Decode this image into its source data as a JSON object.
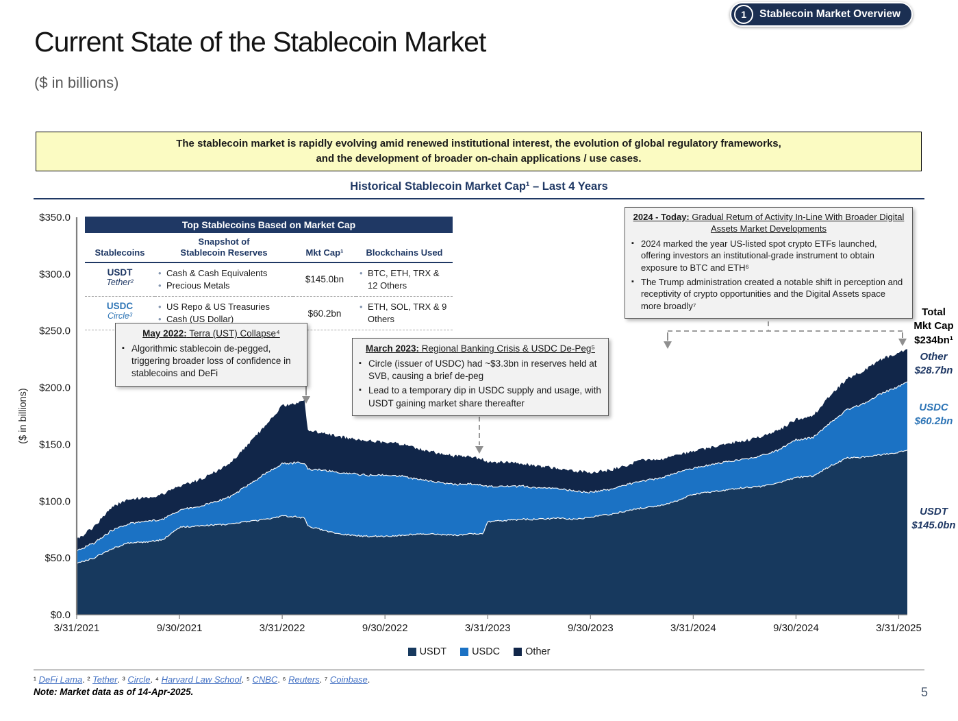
{
  "badge": {
    "number": "1",
    "label": "Stablecoin Market Overview"
  },
  "title": "Current State of the Stablecoin Market",
  "subtitle": "($ in billions)",
  "banner": {
    "line1": "The stablecoin market is rapidly evolving amid renewed institutional interest, the evolution of global regulatory frameworks,",
    "line2": "and the development of broader on-chain applications / use cases."
  },
  "chart_title": "Historical Stablecoin Market Cap¹ – Last 4 Years",
  "table": {
    "header": "Top Stablecoins Based on Market Cap",
    "columns": {
      "stablecoins": "Stablecoins",
      "reserves_l1": "Snapshot of",
      "reserves_l2": "Stablecoin Reserves",
      "mktcap": "Mkt Cap¹",
      "blockchains": "Blockchains Used"
    },
    "rows": [
      {
        "coin": "USDT",
        "issuer": "Tether²",
        "coin_color": "#1f3864",
        "reserves": [
          "Cash & Cash Equivalents",
          "Precious Metals"
        ],
        "mkt_cap": "$145.0bn",
        "blockchains": "BTC, ETH, TRX & 12 Others"
      },
      {
        "coin": "USDC",
        "issuer": "Circle³",
        "coin_color": "#2e75b6",
        "reserves": [
          "US Repo & US Treasuries",
          "Cash (US Dollar)"
        ],
        "mkt_cap": "$60.2bn",
        "blockchains": "ETH, SOL, TRX & 9 Others"
      }
    ]
  },
  "annotations": {
    "may2022": {
      "title_bold": "May 2022:",
      "title_rest": " Terra (UST) Collapse⁴",
      "bullets": [
        "Algorithmic stablecoin de-pegged, triggering broader loss of confidence in stablecoins and DeFi"
      ]
    },
    "mar2023": {
      "title_bold": "March 2023:",
      "title_rest": " Regional Banking Crisis & USDC De-Peg⁵",
      "bullets": [
        "Circle (issuer of USDC) had ~$3.3bn in reserves held at SVB, causing a brief de-peg",
        "Lead to a temporary dip in USDC supply and usage, with USDT gaining market share thereafter"
      ]
    },
    "y2024": {
      "title_bold": "2024 - Today:",
      "title_rest": " Gradual Return of Activity In-Line With Broader Digital Assets Market Developments",
      "bullets": [
        "2024 marked the year US-listed spot crypto ETFs launched, offering investors an institutional-grade instrument to obtain exposure to BTC and ETH⁶",
        "The Trump administration created a notable shift in perception and receptivity of crypto opportunities and the Digital Assets space more broadly⁷"
      ]
    }
  },
  "side_labels": {
    "total_l1": "Total",
    "total_l2": "Mkt Cap",
    "total_l3": "$234bn¹",
    "other_name": "Other",
    "other_value": "$28.7bn",
    "usdc_name": "USDC",
    "usdc_value": "$60.2bn",
    "usdt_name": "USDT",
    "usdt_value": "$145.0bn"
  },
  "chart_data": {
    "type": "area",
    "stacked": true,
    "title": "Historical Stablecoin Market Cap – Last 4 Years",
    "ylabel": "($ in billions)",
    "ylim": [
      0,
      350
    ],
    "ytick_labels": [
      "$0.0",
      "$50.0",
      "$100.0",
      "$150.0",
      "$200.0",
      "$250.0",
      "$300.0",
      "$350.0"
    ],
    "xtick_labels": [
      "3/31/2021",
      "9/30/2021",
      "3/31/2022",
      "9/30/2022",
      "3/31/2023",
      "9/30/2023",
      "3/31/2024",
      "9/30/2024",
      "3/31/2025"
    ],
    "x_months": [
      0,
      1,
      2,
      3,
      4,
      5,
      6,
      7,
      8,
      9,
      10,
      11,
      12,
      13,
      13.3,
      13.5,
      14,
      15,
      16,
      17,
      18,
      19,
      20,
      21,
      22,
      23,
      23.7,
      24,
      25,
      26,
      27,
      28,
      29,
      30,
      31,
      32,
      33,
      34,
      35,
      36,
      37,
      38,
      39,
      40,
      41,
      42,
      43,
      44,
      45,
      46,
      47,
      48,
      48.5
    ],
    "series": [
      {
        "name": "USDT",
        "color": "#17395e",
        "values": [
          45,
          50,
          58,
          63,
          64,
          66,
          77,
          78,
          79,
          80,
          82,
          84,
          87,
          86,
          85,
          78,
          76,
          72,
          70,
          69,
          69,
          70,
          71,
          71,
          70,
          71,
          71,
          82,
          83,
          84,
          84,
          85,
          84,
          86,
          88,
          91,
          94,
          96,
          100,
          106,
          108,
          110,
          112,
          113,
          116,
          121,
          122,
          131,
          138,
          139,
          141,
          143,
          145
        ]
      },
      {
        "name": "USDC",
        "color": "#1b72c4",
        "values": [
          11,
          13,
          16,
          17,
          18,
          18,
          15,
          17,
          20,
          24,
          32,
          40,
          46,
          48,
          48,
          50,
          52,
          54,
          54,
          54,
          54,
          52,
          48,
          46,
          45,
          44,
          43,
          31,
          30,
          29,
          28,
          26,
          25,
          22,
          22,
          23,
          24,
          24,
          25,
          23,
          24,
          25,
          25,
          27,
          29,
          33,
          34,
          38,
          43,
          47,
          54,
          58,
          60.2
        ]
      },
      {
        "name": "Other",
        "color": "#112649",
        "values": [
          10,
          14,
          20,
          22,
          21,
          22,
          21,
          23,
          26,
          30,
          36,
          42,
          51,
          53,
          55,
          34,
          33,
          32,
          31,
          30,
          29,
          28,
          27,
          26,
          25,
          24,
          23,
          22,
          21,
          20,
          19,
          18,
          18,
          17,
          17,
          17,
          18,
          16,
          15,
          15,
          15,
          16,
          16,
          17,
          17,
          18,
          19,
          24,
          27,
          29,
          30,
          30,
          28.7
        ]
      }
    ],
    "legend": [
      "USDT",
      "USDC",
      "Other"
    ],
    "legend_position": "bottom",
    "final_values": {
      "USDT_bn": 145.0,
      "USDC_bn": 60.2,
      "Other_bn": 28.7,
      "Total_bn": 234
    }
  },
  "footnotes": [
    {
      "sup": "¹",
      "label": "DeFi Lama"
    },
    {
      "sup": "²",
      "label": "Tether"
    },
    {
      "sup": "³",
      "label": "Circle"
    },
    {
      "sup": "⁴",
      "label": "Harvard Law School"
    },
    {
      "sup": "⁵",
      "label": "CNBC"
    },
    {
      "sup": "⁶",
      "label": "Reuters"
    },
    {
      "sup": "⁷",
      "label": "Coinbase"
    }
  ],
  "note": "Note: Market data as of 14-Apr-2025.",
  "page_number": "5",
  "colors": {
    "navy": "#1f3864",
    "usdc_blue": "#2e75b6",
    "banner_yellow": "#fbfbc2",
    "annotation_gray": "#f2f2f2"
  }
}
